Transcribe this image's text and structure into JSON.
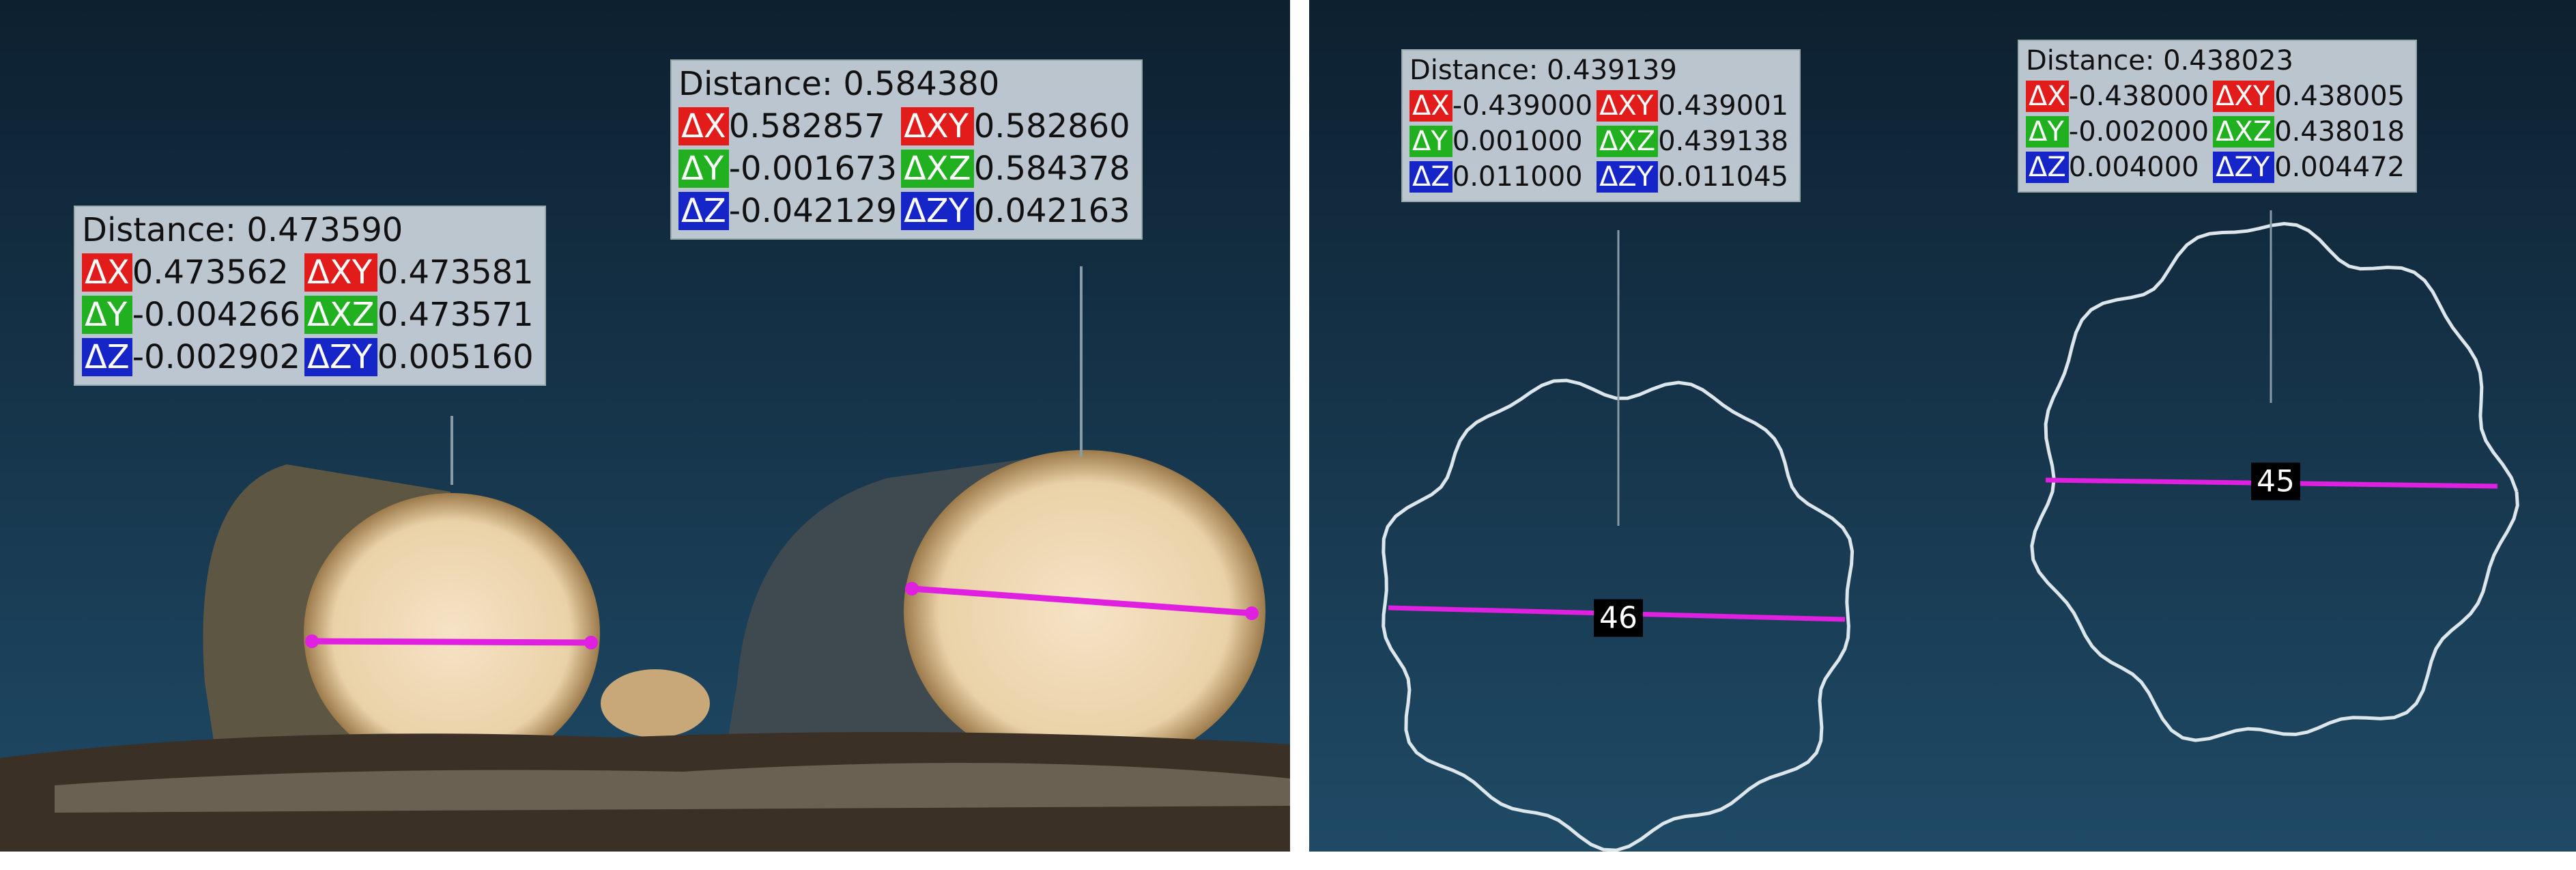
{
  "panels": [
    {
      "measurements": [
        {
          "distance": "Distance: 0.473590",
          "rows": [
            {
              "k1": "ΔX",
              "v1": "0.473562",
              "k2": "ΔXY",
              "v2": "0.473581"
            },
            {
              "k1": "ΔY",
              "v1": "-0.004266",
              "k2": "ΔXZ",
              "v2": "0.473571"
            },
            {
              "k1": "ΔZ",
              "v1": "-0.002902",
              "k2": "ΔZY",
              "v2": "0.005160"
            }
          ]
        },
        {
          "distance": "Distance: 0.584380",
          "rows": [
            {
              "k1": "ΔX",
              "v1": "0.582857",
              "k2": "ΔXY",
              "v2": "0.582860"
            },
            {
              "k1": "ΔY",
              "v1": "-0.001673",
              "k2": "ΔXZ",
              "v2": "0.584378"
            },
            {
              "k1": "ΔZ",
              "v1": "-0.042129",
              "k2": "ΔZY",
              "v2": "0.042163"
            }
          ]
        }
      ],
      "labels": []
    },
    {
      "measurements": [
        {
          "distance": "Distance: 0.439139",
          "rows": [
            {
              "k1": "ΔX",
              "v1": "-0.439000",
              "k2": "ΔXY",
              "v2": "0.439001"
            },
            {
              "k1": "ΔY",
              "v1": "0.001000",
              "k2": "ΔXZ",
              "v2": "0.439138"
            },
            {
              "k1": "ΔZ",
              "v1": "0.011000",
              "k2": "ΔZY",
              "v2": "0.011045"
            }
          ]
        },
        {
          "distance": "Distance: 0.438023",
          "rows": [
            {
              "k1": "ΔX",
              "v1": "-0.438000",
              "k2": "ΔXY",
              "v2": "0.438005"
            },
            {
              "k1": "ΔY",
              "v1": "-0.002000",
              "k2": "ΔXZ",
              "v2": "0.438018"
            },
            {
              "k1": "ΔZ",
              "v1": "0.004000",
              "k2": "ΔZY",
              "v2": "0.004472"
            }
          ]
        }
      ],
      "labels": [
        "46",
        "45"
      ]
    }
  ]
}
